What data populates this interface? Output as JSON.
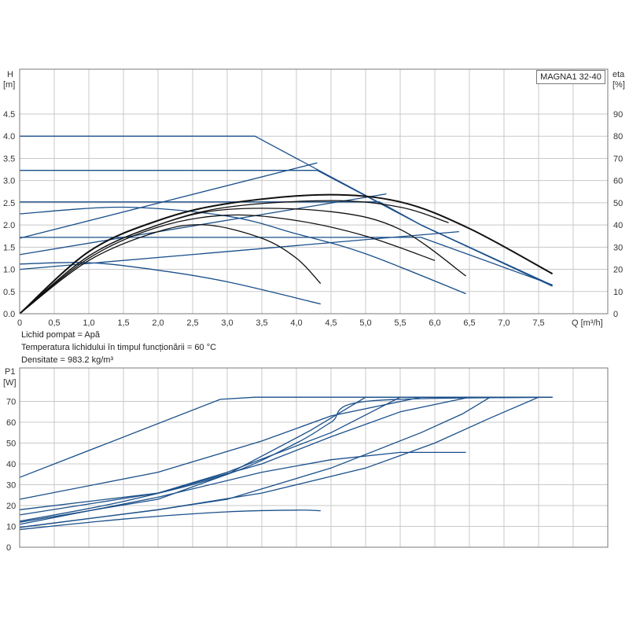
{
  "model": "MAGNA1 32-40",
  "info": [
    "Lichid pompat = Apă",
    "Temperatura lichidului în timpul funcționării = 60 °C",
    "Densitate = 983.2 kg/m³"
  ],
  "colors": {
    "pump": "#1a4f8a",
    "system": "#111111",
    "grid": "#c8c8c8"
  },
  "chart_data": [
    {
      "type": "line",
      "name": "head-chart",
      "ylabel_top": "H",
      "ylabel_unit": "[m]",
      "y2label_top": "eta",
      "y2label_unit": "[%]",
      "xlabel": "Q [m³/h]",
      "xlim": [
        0,
        8.5
      ],
      "ylim": [
        0,
        4.5
      ],
      "y2lim": [
        0,
        90
      ],
      "x_ticks": [
        "0",
        "0,5",
        "1,0",
        "1,5",
        "2,0",
        "2,5",
        "3,0",
        "3,5",
        "4,0",
        "4,5",
        "5,0",
        "5,5",
        "6,0",
        "6,5",
        "7,0",
        "7,5"
      ],
      "y_ticks": [
        "0.0",
        "0.5",
        "1.0",
        "1.5",
        "2.0",
        "2.5",
        "3.0",
        "3.5",
        "4.0",
        "4.5"
      ],
      "y2_ticks": [
        "0",
        "10",
        "20",
        "30",
        "40",
        "50",
        "60",
        "70",
        "80",
        "90"
      ],
      "series": [
        {
          "kind": "pump",
          "points": [
            [
              0,
              4.0
            ],
            [
              3.4,
              4.0
            ],
            [
              5.8,
              2.0
            ],
            [
              7.7,
              0.62
            ]
          ]
        },
        {
          "kind": "pump",
          "points": [
            [
              0,
              3.23
            ],
            [
              4.3,
              3.23
            ],
            [
              5.8,
              2.0
            ],
            [
              7.7,
              0.63
            ]
          ]
        },
        {
          "kind": "pump",
          "points": [
            [
              0,
              2.52
            ],
            [
              5.2,
              2.52
            ],
            [
              5.8,
              2.0
            ],
            [
              7.7,
              0.64
            ]
          ]
        },
        {
          "kind": "pump",
          "points": [
            [
              0,
              1.72
            ],
            [
              5.8,
              1.72
            ],
            [
              7.7,
              0.65
            ]
          ]
        },
        {
          "kind": "pump",
          "points": [
            [
              0,
              2.25
            ],
            [
              1.5,
              2.4
            ],
            [
              3.0,
              2.2
            ],
            [
              4.0,
              1.8
            ],
            [
              5.0,
              1.35
            ],
            [
              6.45,
              0.45
            ]
          ]
        },
        {
          "kind": "pump",
          "points": [
            [
              0,
              1.12
            ],
            [
              1.0,
              1.15
            ],
            [
              2.0,
              0.98
            ],
            [
              3.0,
              0.72
            ],
            [
              4.35,
              0.22
            ]
          ]
        },
        {
          "kind": "pump",
          "points": [
            [
              0,
              1.7
            ],
            [
              4.3,
              3.4
            ]
          ]
        },
        {
          "kind": "pump",
          "points": [
            [
              0,
              1.33
            ],
            [
              5.3,
              2.7
            ]
          ]
        },
        {
          "kind": "pump",
          "points": [
            [
              0,
              1.0
            ],
            [
              6.35,
              1.85
            ]
          ]
        },
        {
          "kind": "system",
          "points": [
            [
              0,
              0.0
            ],
            [
              1.0,
              1.4
            ],
            [
              2.0,
              2.1
            ],
            [
              3.0,
              2.48
            ],
            [
              4.4,
              2.68
            ],
            [
              5.5,
              2.52
            ],
            [
              6.5,
              1.92
            ],
            [
              7.7,
              0.9
            ]
          ]
        },
        {
          "kind": "system",
          "points": [
            [
              0,
              0.0
            ],
            [
              1.0,
              1.3
            ],
            [
              2.0,
              2.0
            ],
            [
              3.0,
              2.4
            ],
            [
              4.5,
              2.55
            ],
            [
              5.5,
              2.4
            ],
            [
              6.2,
              2.05
            ]
          ]
        },
        {
          "kind": "system",
          "points": [
            [
              0,
              0.0
            ],
            [
              1.0,
              1.3
            ],
            [
              2.0,
              2.0
            ],
            [
              3.0,
              2.35
            ],
            [
              4.5,
              2.3
            ],
            [
              5.5,
              1.9
            ],
            [
              6.45,
              0.85
            ]
          ]
        },
        {
          "kind": "system",
          "points": [
            [
              0,
              0.0
            ],
            [
              1.0,
              1.25
            ],
            [
              2.0,
              1.95
            ],
            [
              3.0,
              2.22
            ],
            [
              4.0,
              2.1
            ],
            [
              5.0,
              1.75
            ],
            [
              6.0,
              1.2
            ]
          ]
        },
        {
          "kind": "system",
          "points": [
            [
              0,
              0.0
            ],
            [
              1.0,
              1.2
            ],
            [
              2.0,
              1.85
            ],
            [
              2.7,
              2.0
            ],
            [
              3.5,
              1.7
            ],
            [
              4.0,
              1.25
            ],
            [
              4.35,
              0.68
            ]
          ]
        }
      ]
    },
    {
      "type": "line",
      "name": "power-chart",
      "ylabel_top": "P1",
      "ylabel_unit": "[W]",
      "xlim": [
        0,
        8.5
      ],
      "ylim": [
        0,
        80
      ],
      "y_ticks": [
        "0",
        "10",
        "20",
        "30",
        "40",
        "50",
        "60",
        "70"
      ],
      "series": [
        {
          "kind": "pump",
          "points": [
            [
              0,
              33.5
            ],
            [
              2.9,
              71
            ],
            [
              3.4,
              72
            ],
            [
              7.7,
              72
            ]
          ]
        },
        {
          "kind": "pump",
          "points": [
            [
              0,
              23
            ],
            [
              2.0,
              36
            ],
            [
              3.5,
              51
            ],
            [
              4.5,
              63
            ],
            [
              5.8,
              72
            ],
            [
              7.7,
              72
            ]
          ]
        },
        {
          "kind": "pump",
          "points": [
            [
              0,
              18
            ],
            [
              2.0,
              26
            ],
            [
              3.5,
              40
            ],
            [
              4.5,
              53
            ],
            [
              5.5,
              65
            ],
            [
              6.5,
              72
            ],
            [
              7.7,
              72
            ]
          ]
        },
        {
          "kind": "pump",
          "points": [
            [
              0,
              15.5
            ],
            [
              2.0,
              26
            ],
            [
              3.0,
              36
            ],
            [
              4.5,
              55
            ],
            [
              5.5,
              72
            ],
            [
              7.7,
              72
            ]
          ]
        },
        {
          "kind": "pump",
          "points": [
            [
              0,
              12
            ],
            [
              2.0,
              23
            ],
            [
              3.0,
              35
            ],
            [
              4.2,
              56
            ],
            [
              5.0,
              72
            ],
            [
              7.7,
              72
            ]
          ]
        },
        {
          "kind": "pump",
          "points": [
            [
              0,
              12.5
            ],
            [
              1.5,
              22
            ],
            [
              3.0,
              35
            ],
            [
              4.0,
              50
            ],
            [
              4.5,
              60
            ],
            [
              5.0,
              70
            ],
            [
              7.7,
              72
            ]
          ]
        },
        {
          "kind": "pump",
          "points": [
            [
              0,
              9.5
            ],
            [
              2.0,
              18
            ],
            [
              3.0,
              23
            ],
            [
              4.5,
              38
            ],
            [
              5.8,
              55
            ],
            [
              6.4,
              64
            ],
            [
              6.8,
              72
            ],
            [
              7.7,
              72
            ]
          ]
        },
        {
          "kind": "pump",
          "points": [
            [
              0,
              9.5
            ],
            [
              2.0,
              18
            ],
            [
              3.5,
              26
            ],
            [
              5.0,
              38
            ],
            [
              6.0,
              50
            ],
            [
              6.8,
              62
            ],
            [
              7.5,
              72
            ],
            [
              7.7,
              72
            ]
          ]
        },
        {
          "kind": "pump",
          "points": [
            [
              0,
              11
            ],
            [
              2.0,
              24
            ],
            [
              3.5,
              36
            ],
            [
              4.5,
              42
            ],
            [
              5.5,
              45.5
            ],
            [
              6.45,
              45.5
            ]
          ]
        },
        {
          "kind": "pump",
          "points": [
            [
              0,
              8.5
            ],
            [
              1.5,
              13.5
            ],
            [
              3.0,
              17
            ],
            [
              4.0,
              17.8
            ],
            [
              4.35,
              17.5
            ]
          ]
        }
      ]
    }
  ]
}
